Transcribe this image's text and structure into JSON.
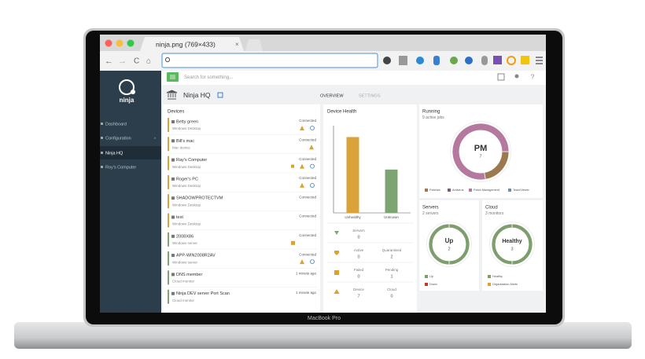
{
  "browser": {
    "tab_title": "ninja.png (769×433)"
  },
  "laptop": {
    "label": "MacBook Pro"
  },
  "sidebar": {
    "logo": "ninja",
    "items": [
      "Dashboard",
      "Configuration",
      "Ninja HQ",
      "Roy's Computer"
    ]
  },
  "search": {
    "placeholder": "Search for something..."
  },
  "header": {
    "title": "Ninja HQ",
    "tabs": [
      "OVERVIEW",
      "SETTINGS"
    ]
  },
  "devices": {
    "title": "Devices",
    "rows": [
      {
        "name": "Betty green",
        "type": "Windows Desktop",
        "status": "Connected"
      },
      {
        "name": "Bill's mac",
        "type": "Mac device",
        "status": "Connected"
      },
      {
        "name": "Ray's Computer",
        "type": "Windows Desktop",
        "status": "Connected"
      },
      {
        "name": "Roger's PC",
        "type": "Windows Desktop",
        "status": "Connected"
      },
      {
        "name": "SHADOWPROTECTVM",
        "type": "Windows Desktop",
        "status": "Connected"
      },
      {
        "name": "test",
        "type": "Windows Desktop",
        "status": "Connected"
      },
      {
        "name": "2008X86",
        "type": "Windows server",
        "status": "Connected"
      },
      {
        "name": "APP-WIN2008R2AV",
        "type": "Windows server",
        "status": "Connected"
      },
      {
        "name": "DNS member",
        "type": "Cloud monitor",
        "status": "1 minute ago"
      },
      {
        "name": "Ninja DEV server Port Scan",
        "type": "Cloud monitor",
        "status": "1 minute ago"
      }
    ]
  },
  "chart_data": [
    {
      "type": "bar",
      "title": "Device Health",
      "categories": [
        "Unhealthy",
        "Unknown"
      ],
      "values": [
        7,
        4
      ],
      "colors": [
        "#d9a33b",
        "#7fa474"
      ]
    },
    {
      "type": "donut",
      "title": "Running",
      "subtitle": "9 active jobs",
      "center_label": "PM",
      "center_value": 7,
      "categories": [
        "Patches",
        "Antivirus",
        "Patch Management",
        "TeamViewer"
      ],
      "values": [
        2,
        0,
        7,
        0
      ],
      "colors": [
        "#9c7a4f",
        "#7a5c78",
        "#b5799f",
        "#6f8fb0"
      ]
    },
    {
      "type": "donut",
      "title": "Servers",
      "subtitle": "2 servers",
      "center_label": "Up",
      "center_value": 2,
      "categories": [
        "Up",
        "Down"
      ],
      "values": [
        2,
        0
      ],
      "colors": [
        "#7e9e6e",
        "#c0392b"
      ]
    },
    {
      "type": "donut",
      "title": "Cloud",
      "subtitle": "3 monitors",
      "center_label": "Healthy",
      "center_value": 3,
      "categories": [
        "Healthy",
        "Organization Alerts"
      ],
      "values": [
        3,
        0
      ],
      "colors": [
        "#7e9e6e",
        "#e0a030"
      ]
    }
  ],
  "device_stats": [
    {
      "label": "Servers",
      "value": 0
    },
    {
      "label": "Active",
      "value": 0
    },
    {
      "label": "Quarantined",
      "value": 2
    },
    {
      "label": "Failed",
      "value": 0
    },
    {
      "label": "Pending",
      "value": 1
    },
    {
      "label": "Device",
      "value": 7
    },
    {
      "label": "Cloud",
      "value": 0
    }
  ]
}
